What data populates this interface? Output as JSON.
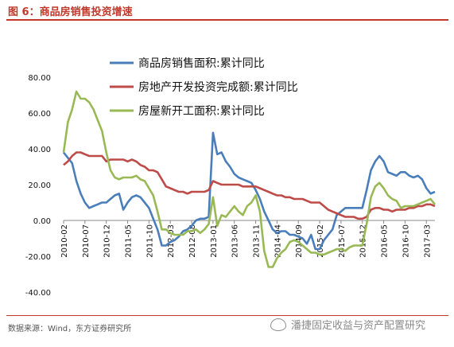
{
  "title": "图 6：商品房销售投资增速",
  "source": "数据来源：Wind，东方证券研究所",
  "watermark": "潘捷固定收益与资产配置研究",
  "colors": {
    "title": "#c0392b",
    "series1": "#4a7ebb",
    "series2": "#be4b48",
    "series3": "#98b954"
  },
  "chart_data": {
    "type": "line",
    "ylim": [
      -40,
      80
    ],
    "yticks": [
      "80.00",
      "60.00",
      "40.00",
      "20.00",
      "0.00",
      "-20.00",
      "-40.00"
    ],
    "ytick_values": [
      80,
      60,
      40,
      20,
      0,
      -20,
      -40
    ],
    "x_start": "2010-02",
    "xticks": [
      "2010-02",
      "2010-07",
      "2010-12",
      "2011-05",
      "2011-10",
      "2012-03",
      "2012-08",
      "2013-01",
      "2013-06",
      "2013-11",
      "2014-04",
      "2014-09",
      "2015-02",
      "2015-07",
      "2015-12",
      "2016-05",
      "2016-10",
      "2017-03"
    ],
    "xtick_months": [
      0,
      5,
      10,
      15,
      20,
      25,
      30,
      35,
      40,
      45,
      50,
      55,
      60,
      65,
      70,
      75,
      80,
      85
    ],
    "series": [
      {
        "name": "商品房销售面积:累计同比",
        "color": "#4a7ebb",
        "points": [
          [
            0,
            38
          ],
          [
            1,
            35
          ],
          [
            2,
            32
          ],
          [
            3,
            22
          ],
          [
            4,
            15
          ],
          [
            5,
            10
          ],
          [
            6,
            7
          ],
          [
            7,
            8
          ],
          [
            8,
            9
          ],
          [
            9,
            10
          ],
          [
            10,
            10
          ],
          [
            11,
            12
          ],
          [
            12,
            14
          ],
          [
            13,
            15
          ],
          [
            14,
            6
          ],
          [
            15,
            10
          ],
          [
            16,
            13
          ],
          [
            17,
            14
          ],
          [
            18,
            13
          ],
          [
            19,
            10
          ],
          [
            20,
            7
          ],
          [
            21,
            1
          ],
          [
            22,
            -5
          ],
          [
            23,
            -14
          ],
          [
            24,
            -14
          ],
          [
            25,
            -12
          ],
          [
            26,
            -11
          ],
          [
            27,
            -9
          ],
          [
            28,
            -6
          ],
          [
            29,
            -5
          ],
          [
            30,
            -3
          ],
          [
            31,
            0
          ],
          [
            32,
            1
          ],
          [
            33,
            1
          ],
          [
            34,
            2
          ],
          [
            35,
            49
          ],
          [
            36,
            37
          ],
          [
            37,
            38
          ],
          [
            38,
            33
          ],
          [
            39,
            30
          ],
          [
            40,
            26
          ],
          [
            41,
            24
          ],
          [
            42,
            23
          ],
          [
            43,
            22
          ],
          [
            44,
            21
          ],
          [
            45,
            17
          ],
          [
            46,
            12
          ],
          [
            47,
            5
          ],
          [
            48,
            0
          ],
          [
            49,
            -5
          ],
          [
            50,
            -7
          ],
          [
            51,
            -6
          ],
          [
            52,
            -6
          ],
          [
            53,
            -8
          ],
          [
            54,
            -8
          ],
          [
            55,
            -9
          ],
          [
            56,
            -10
          ],
          [
            57,
            -13
          ],
          [
            58,
            -8
          ],
          [
            59,
            -16
          ],
          [
            60,
            -16
          ],
          [
            61,
            -11
          ],
          [
            62,
            -8
          ],
          [
            63,
            -5
          ],
          [
            64,
            3
          ],
          [
            65,
            5
          ],
          [
            66,
            7
          ],
          [
            67,
            7
          ],
          [
            68,
            7
          ],
          [
            69,
            7
          ],
          [
            70,
            7
          ],
          [
            71,
            17
          ],
          [
            72,
            28
          ],
          [
            73,
            33
          ],
          [
            74,
            36
          ],
          [
            75,
            33
          ],
          [
            76,
            27
          ],
          [
            77,
            26
          ],
          [
            78,
            25
          ],
          [
            79,
            27
          ],
          [
            80,
            27
          ],
          [
            81,
            25
          ],
          [
            82,
            24
          ],
          [
            83,
            25
          ],
          [
            84,
            23
          ],
          [
            85,
            18
          ],
          [
            86,
            15
          ],
          [
            87,
            16
          ]
        ]
      },
      {
        "name": "房地产开发投资完成额:累计同比",
        "color": "#be4b48",
        "points": [
          [
            0,
            31
          ],
          [
            1,
            33
          ],
          [
            2,
            36
          ],
          [
            3,
            38
          ],
          [
            4,
            38
          ],
          [
            5,
            37
          ],
          [
            6,
            36
          ],
          [
            7,
            36
          ],
          [
            8,
            36
          ],
          [
            9,
            36
          ],
          [
            10,
            33
          ],
          [
            11,
            34
          ],
          [
            12,
            34
          ],
          [
            13,
            34
          ],
          [
            14,
            34
          ],
          [
            15,
            33
          ],
          [
            16,
            34
          ],
          [
            17,
            33
          ],
          [
            18,
            31
          ],
          [
            19,
            30
          ],
          [
            20,
            28
          ],
          [
            21,
            28
          ],
          [
            22,
            27
          ],
          [
            23,
            23
          ],
          [
            24,
            19
          ],
          [
            25,
            18
          ],
          [
            26,
            17
          ],
          [
            27,
            16
          ],
          [
            28,
            16
          ],
          [
            29,
            15
          ],
          [
            30,
            16
          ],
          [
            31,
            16
          ],
          [
            32,
            16
          ],
          [
            33,
            16
          ],
          [
            34,
            17
          ],
          [
            35,
            22
          ],
          [
            36,
            21
          ],
          [
            37,
            20
          ],
          [
            38,
            20
          ],
          [
            39,
            20
          ],
          [
            40,
            20
          ],
          [
            41,
            20
          ],
          [
            42,
            19
          ],
          [
            43,
            19
          ],
          [
            44,
            19
          ],
          [
            45,
            19
          ],
          [
            46,
            18
          ],
          [
            47,
            17
          ],
          [
            48,
            16
          ],
          [
            49,
            15
          ],
          [
            50,
            14
          ],
          [
            51,
            14
          ],
          [
            52,
            13
          ],
          [
            53,
            13
          ],
          [
            54,
            12
          ],
          [
            55,
            12
          ],
          [
            56,
            12
          ],
          [
            57,
            11
          ],
          [
            58,
            10
          ],
          [
            59,
            10
          ],
          [
            60,
            10
          ],
          [
            61,
            8
          ],
          [
            62,
            6
          ],
          [
            63,
            5
          ],
          [
            64,
            4
          ],
          [
            65,
            3
          ],
          [
            66,
            2
          ],
          [
            67,
            2
          ],
          [
            68,
            2
          ],
          [
            69,
            1
          ],
          [
            70,
            1
          ],
          [
            71,
            2
          ],
          [
            72,
            6
          ],
          [
            73,
            7
          ],
          [
            74,
            7
          ],
          [
            75,
            6
          ],
          [
            76,
            6
          ],
          [
            77,
            5
          ],
          [
            78,
            6
          ],
          [
            79,
            6
          ],
          [
            80,
            6
          ],
          [
            81,
            7
          ],
          [
            82,
            7
          ],
          [
            83,
            8
          ],
          [
            84,
            8
          ],
          [
            85,
            9
          ],
          [
            86,
            9
          ],
          [
            87,
            8
          ]
        ]
      },
      {
        "name": "房屋新开工面积:累计同比",
        "color": "#98b954",
        "points": [
          [
            0,
            38
          ],
          [
            1,
            55
          ],
          [
            2,
            62
          ],
          [
            3,
            72
          ],
          [
            4,
            68
          ],
          [
            5,
            68
          ],
          [
            6,
            66
          ],
          [
            7,
            62
          ],
          [
            8,
            56
          ],
          [
            9,
            50
          ],
          [
            10,
            38
          ],
          [
            11,
            28
          ],
          [
            12,
            24
          ],
          [
            13,
            23
          ],
          [
            14,
            24
          ],
          [
            15,
            24
          ],
          [
            16,
            24
          ],
          [
            17,
            25
          ],
          [
            18,
            23
          ],
          [
            19,
            22
          ],
          [
            20,
            18
          ],
          [
            21,
            14
          ],
          [
            22,
            5
          ],
          [
            23,
            -5
          ],
          [
            24,
            -5
          ],
          [
            25,
            -7
          ],
          [
            26,
            -8
          ],
          [
            27,
            -8
          ],
          [
            28,
            -8
          ],
          [
            29,
            -6
          ],
          [
            30,
            -6
          ],
          [
            31,
            -5
          ],
          [
            32,
            -7
          ],
          [
            33,
            -5
          ],
          [
            34,
            -2
          ],
          [
            35,
            13
          ],
          [
            36,
            -3
          ],
          [
            37,
            3
          ],
          [
            38,
            2
          ],
          [
            39,
            5
          ],
          [
            40,
            8
          ],
          [
            41,
            5
          ],
          [
            42,
            3
          ],
          [
            43,
            8
          ],
          [
            44,
            10
          ],
          [
            45,
            14
          ],
          [
            46,
            5
          ],
          [
            47,
            -17
          ],
          [
            48,
            -26
          ],
          [
            49,
            -26
          ],
          [
            50,
            -21
          ],
          [
            51,
            -18
          ],
          [
            52,
            -16
          ],
          [
            53,
            -12
          ],
          [
            54,
            -11
          ],
          [
            55,
            -12
          ],
          [
            56,
            -14
          ],
          [
            57,
            -16
          ],
          [
            58,
            -18
          ],
          [
            59,
            -18
          ],
          [
            60,
            -19
          ],
          [
            61,
            -19
          ],
          [
            62,
            -18
          ],
          [
            63,
            -17
          ],
          [
            64,
            -16
          ],
          [
            65,
            -16
          ],
          [
            66,
            -17
          ],
          [
            67,
            -15
          ],
          [
            68,
            -14
          ],
          [
            69,
            -14
          ],
          [
            70,
            -14
          ],
          [
            71,
            -2
          ],
          [
            72,
            13
          ],
          [
            73,
            19
          ],
          [
            74,
            21
          ],
          [
            75,
            18
          ],
          [
            76,
            14
          ],
          [
            77,
            12
          ],
          [
            78,
            11
          ],
          [
            79,
            7
          ],
          [
            80,
            8
          ],
          [
            81,
            8
          ],
          [
            82,
            8
          ],
          [
            83,
            9
          ],
          [
            84,
            10
          ],
          [
            85,
            11
          ],
          [
            86,
            12
          ],
          [
            87,
            9
          ]
        ]
      }
    ]
  }
}
